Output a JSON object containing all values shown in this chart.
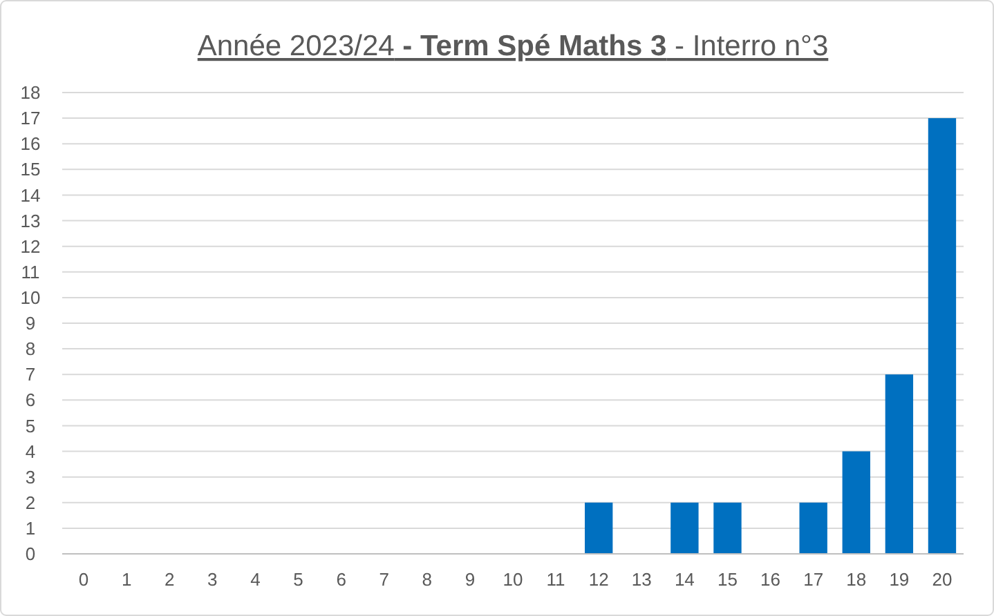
{
  "chart_data": {
    "type": "bar",
    "title": "Année 2023/24 - Term Spé Maths 3 - Interro n°3",
    "categories": [
      "0",
      "1",
      "2",
      "3",
      "4",
      "5",
      "6",
      "7",
      "8",
      "9",
      "10",
      "11",
      "12",
      "13",
      "14",
      "15",
      "16",
      "17",
      "18",
      "19",
      "20"
    ],
    "values": [
      0,
      0,
      0,
      0,
      0,
      0,
      0,
      0,
      0,
      0,
      0,
      0,
      2,
      0,
      2,
      2,
      0,
      2,
      4,
      7,
      17
    ],
    "color": "#0070c0",
    "ylim": [
      0,
      18
    ],
    "yticks": [
      0,
      1,
      2,
      3,
      4,
      5,
      6,
      7,
      8,
      9,
      10,
      11,
      12,
      13,
      14,
      15,
      16,
      17,
      18
    ],
    "grid": "y"
  }
}
